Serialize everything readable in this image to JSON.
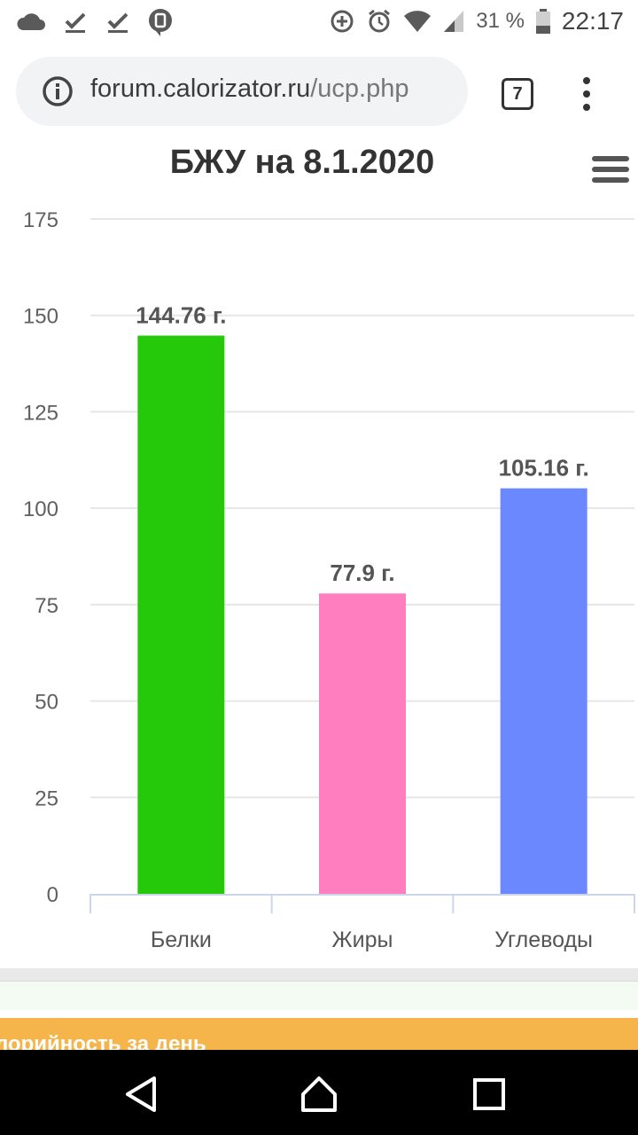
{
  "status_bar": {
    "battery_percent": "31 %",
    "time": "22:17",
    "icons": [
      "cloud-icon",
      "download-done-icon",
      "download-done-icon",
      "location-badge-icon",
      "data-saver-icon",
      "alarm-icon",
      "wifi-icon",
      "signal-icon",
      "battery-icon"
    ]
  },
  "browser": {
    "url_domain": "forum.calorizator.ru",
    "url_path": "/ucp.php",
    "tab_count": "7"
  },
  "chart_data": {
    "type": "bar",
    "title": "БЖУ на 8.1.2020",
    "categories": [
      "Белки",
      "Жиры",
      "Углеводы"
    ],
    "values": [
      144.76,
      77.9,
      105.16
    ],
    "data_labels": [
      "144.76 г.",
      "77.9 г.",
      "105.16 г."
    ],
    "colors": [
      "#26c90a",
      "#ff7ec0",
      "#6b88ff"
    ],
    "ylim": [
      0,
      175
    ],
    "yticks": [
      "0",
      "25",
      "50",
      "75",
      "100",
      "125",
      "150",
      "175"
    ],
    "grid": true,
    "legend": "none"
  },
  "below_chart": {
    "section_header_partial": "лорийность за день"
  },
  "nav": {
    "icons": [
      "back-icon",
      "home-icon",
      "recents-icon"
    ]
  }
}
